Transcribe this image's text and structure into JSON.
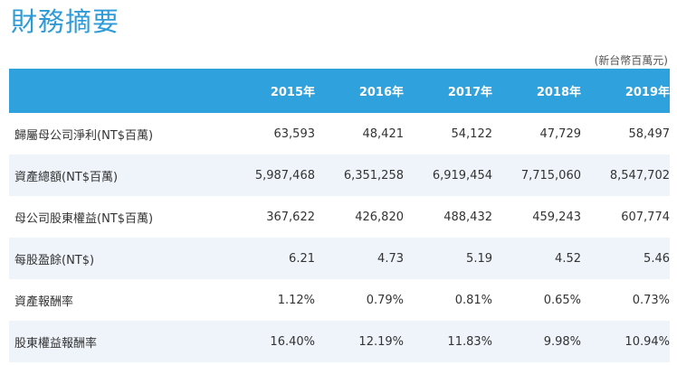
{
  "title": "財務摘要",
  "unit_note": "(新台幣百萬元)",
  "columns": [
    "2015年",
    "2016年",
    "2017年",
    "2018年",
    "2019年"
  ],
  "rows": [
    {
      "label": "歸屬母公司淨利(NT$百萬)",
      "values": [
        "63,593",
        "48,421",
        "54,122",
        "47,729",
        "58,497"
      ]
    },
    {
      "label": "資產總額(NT$百萬)",
      "values": [
        "5,987,468",
        "6,351,258",
        "6,919,454",
        "7,715,060",
        "8,547,702"
      ]
    },
    {
      "label": "母公司股東權益(NT$百萬)",
      "values": [
        "367,622",
        "426,820",
        "488,432",
        "459,243",
        "607,774"
      ]
    },
    {
      "label": "每股盈餘(NT$)",
      "values": [
        "6.21",
        "4.73",
        "5.19",
        "4.52",
        "5.46"
      ]
    },
    {
      "label": "資產報酬率",
      "values": [
        "1.12%",
        "0.79%",
        "0.81%",
        "0.65%",
        "0.73%"
      ]
    },
    {
      "label": "股東權益報酬率",
      "values": [
        "16.40%",
        "12.19%",
        "11.83%",
        "9.98%",
        "10.94%"
      ]
    }
  ],
  "colors": {
    "title": "#2e9bd6",
    "header_bg": "#2fa1dc",
    "alt_row_bg": "#eef4fa"
  }
}
